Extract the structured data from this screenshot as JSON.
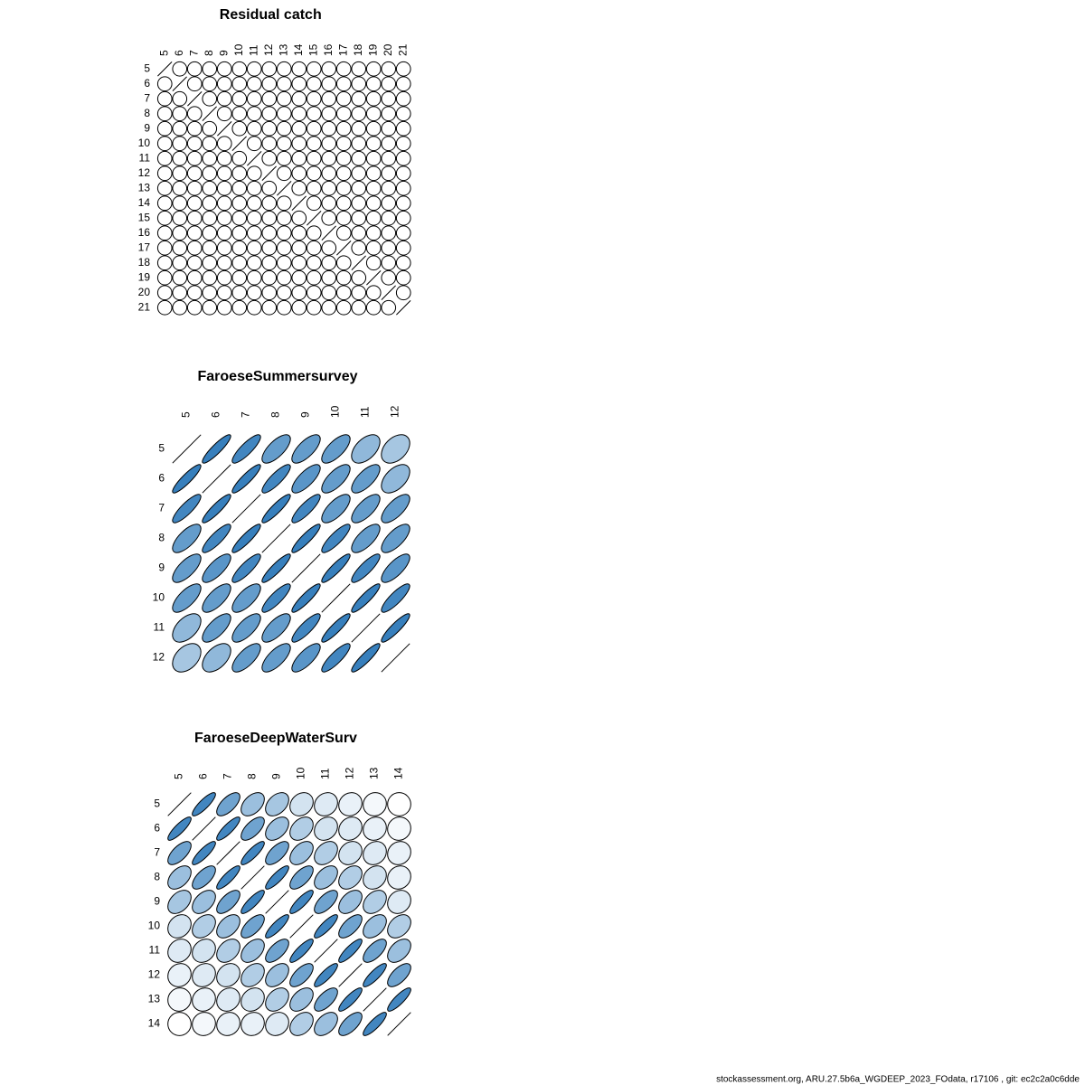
{
  "chart_data": [
    {
      "type": "corrplot",
      "title": "Residual catch",
      "categories": [
        "5",
        "6",
        "7",
        "8",
        "9",
        "10",
        "11",
        "12",
        "13",
        "14",
        "15",
        "16",
        "17",
        "18",
        "19",
        "20",
        "21"
      ],
      "color_scale": [
        "#ffffff",
        "#2171b5"
      ],
      "values": [
        [
          1,
          0,
          0,
          0,
          0,
          0,
          0,
          0,
          0,
          0,
          0,
          0,
          0,
          0,
          0,
          0,
          0
        ],
        [
          0,
          1,
          0,
          0,
          0,
          0,
          0,
          0,
          0,
          0,
          0,
          0,
          0,
          0,
          0,
          0,
          0
        ],
        [
          0,
          0,
          1,
          0,
          0,
          0,
          0,
          0,
          0,
          0,
          0,
          0,
          0,
          0,
          0,
          0,
          0
        ],
        [
          0,
          0,
          0,
          1,
          0,
          0,
          0,
          0,
          0,
          0,
          0,
          0,
          0,
          0,
          0,
          0,
          0
        ],
        [
          0,
          0,
          0,
          0,
          1,
          0,
          0,
          0,
          0,
          0,
          0,
          0,
          0,
          0,
          0,
          0,
          0
        ],
        [
          0,
          0,
          0,
          0,
          0,
          1,
          0,
          0,
          0,
          0,
          0,
          0,
          0,
          0,
          0,
          0,
          0
        ],
        [
          0,
          0,
          0,
          0,
          0,
          0,
          1,
          0,
          0,
          0,
          0,
          0,
          0,
          0,
          0,
          0,
          0
        ],
        [
          0,
          0,
          0,
          0,
          0,
          0,
          0,
          1,
          0,
          0,
          0,
          0,
          0,
          0,
          0,
          0,
          0
        ],
        [
          0,
          0,
          0,
          0,
          0,
          0,
          0,
          0,
          1,
          0,
          0,
          0,
          0,
          0,
          0,
          0,
          0
        ],
        [
          0,
          0,
          0,
          0,
          0,
          0,
          0,
          0,
          0,
          1,
          0,
          0,
          0,
          0,
          0,
          0,
          0
        ],
        [
          0,
          0,
          0,
          0,
          0,
          0,
          0,
          0,
          0,
          0,
          1,
          0,
          0,
          0,
          0,
          0,
          0
        ],
        [
          0,
          0,
          0,
          0,
          0,
          0,
          0,
          0,
          0,
          0,
          0,
          1,
          0,
          0,
          0,
          0,
          0
        ],
        [
          0,
          0,
          0,
          0,
          0,
          0,
          0,
          0,
          0,
          0,
          0,
          0,
          1,
          0,
          0,
          0,
          0
        ],
        [
          0,
          0,
          0,
          0,
          0,
          0,
          0,
          0,
          0,
          0,
          0,
          0,
          0,
          1,
          0,
          0,
          0
        ],
        [
          0,
          0,
          0,
          0,
          0,
          0,
          0,
          0,
          0,
          0,
          0,
          0,
          0,
          0,
          1,
          0,
          0
        ],
        [
          0,
          0,
          0,
          0,
          0,
          0,
          0,
          0,
          0,
          0,
          0,
          0,
          0,
          0,
          0,
          1,
          0
        ],
        [
          0,
          0,
          0,
          0,
          0,
          0,
          0,
          0,
          0,
          0,
          0,
          0,
          0,
          0,
          0,
          0,
          1
        ]
      ]
    },
    {
      "type": "corrplot",
      "title": "FaroeseSummersurvey",
      "categories": [
        "5",
        "6",
        "7",
        "8",
        "9",
        "10",
        "11",
        "12"
      ],
      "color_scale": [
        "#ffffff",
        "#2171b5"
      ],
      "values": [
        [
          1,
          0.9,
          0.85,
          0.7,
          0.7,
          0.7,
          0.5,
          0.4
        ],
        [
          0.9,
          1,
          0.9,
          0.85,
          0.75,
          0.7,
          0.7,
          0.5
        ],
        [
          0.85,
          0.9,
          1,
          0.9,
          0.85,
          0.7,
          0.7,
          0.7
        ],
        [
          0.7,
          0.85,
          0.9,
          1,
          0.9,
          0.85,
          0.7,
          0.7
        ],
        [
          0.7,
          0.75,
          0.85,
          0.9,
          1,
          0.9,
          0.85,
          0.75
        ],
        [
          0.7,
          0.7,
          0.7,
          0.85,
          0.9,
          1,
          0.9,
          0.85
        ],
        [
          0.5,
          0.7,
          0.7,
          0.7,
          0.85,
          0.9,
          1,
          0.9
        ],
        [
          0.4,
          0.5,
          0.7,
          0.7,
          0.75,
          0.85,
          0.9,
          1
        ]
      ]
    },
    {
      "type": "corrplot",
      "title": "FaroeseDeepWaterSurv",
      "categories": [
        "5",
        "6",
        "7",
        "8",
        "9",
        "10",
        "11",
        "12",
        "13",
        "14"
      ],
      "color_scale": [
        "#ffffff",
        "#2171b5"
      ],
      "values": [
        [
          1,
          0.85,
          0.65,
          0.45,
          0.4,
          0.2,
          0.15,
          0.1,
          0.05,
          0
        ],
        [
          0.85,
          1,
          0.85,
          0.65,
          0.45,
          0.35,
          0.2,
          0.15,
          0.1,
          0.05
        ],
        [
          0.65,
          0.85,
          1,
          0.85,
          0.65,
          0.45,
          0.35,
          0.2,
          0.15,
          0.1
        ],
        [
          0.45,
          0.65,
          0.85,
          1,
          0.85,
          0.65,
          0.45,
          0.35,
          0.2,
          0.1
        ],
        [
          0.4,
          0.45,
          0.65,
          0.85,
          1,
          0.85,
          0.65,
          0.45,
          0.35,
          0.15
        ],
        [
          0.2,
          0.35,
          0.45,
          0.65,
          0.85,
          1,
          0.85,
          0.65,
          0.45,
          0.35
        ],
        [
          0.15,
          0.2,
          0.35,
          0.45,
          0.65,
          0.85,
          1,
          0.85,
          0.65,
          0.45
        ],
        [
          0.1,
          0.15,
          0.2,
          0.35,
          0.45,
          0.65,
          0.85,
          1,
          0.85,
          0.65
        ],
        [
          0.05,
          0.1,
          0.15,
          0.2,
          0.35,
          0.45,
          0.65,
          0.85,
          1,
          0.85
        ],
        [
          0,
          0.05,
          0.1,
          0.1,
          0.15,
          0.35,
          0.45,
          0.65,
          0.85,
          1
        ]
      ]
    }
  ],
  "footer": "stockassessment.org, ARU.27.5b6a_WGDEEP_2023_FOdata, r17106 , git: ec2c2a0c6dde"
}
